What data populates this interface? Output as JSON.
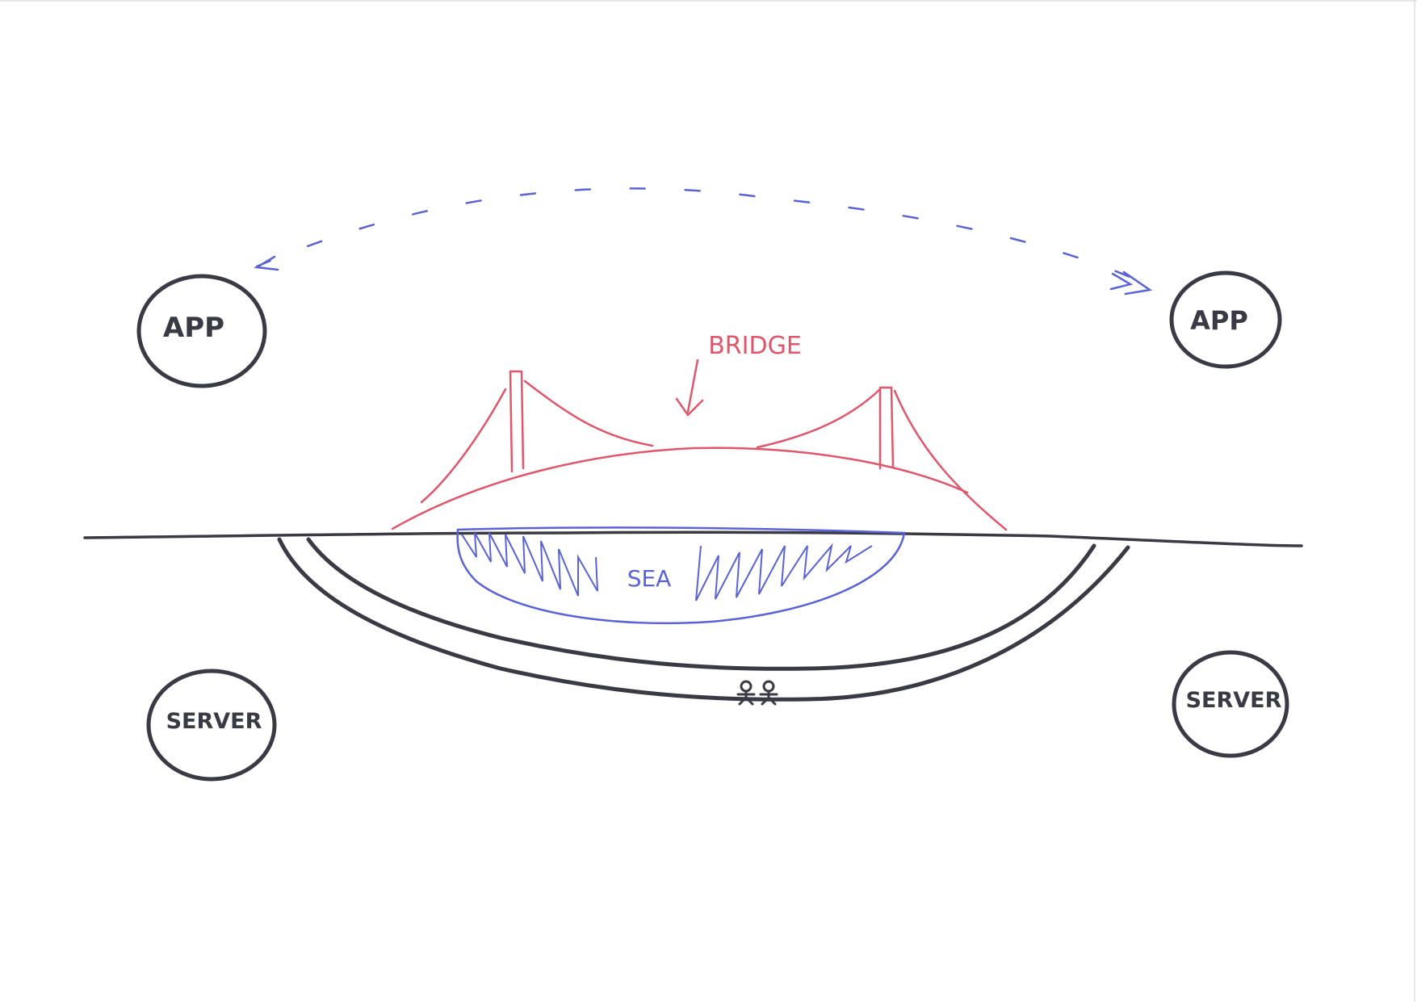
{
  "nodes": {
    "app_left": "APP",
    "app_right": "APP",
    "server_left": "SERVER",
    "server_right": "SERVER"
  },
  "labels": {
    "bridge": "BRIDGE",
    "sea": "SEA"
  },
  "colors": {
    "ink": "#3a3a44",
    "bridge": "#e0566b",
    "sea": "#5a63d6",
    "paper": "#ffffff"
  }
}
